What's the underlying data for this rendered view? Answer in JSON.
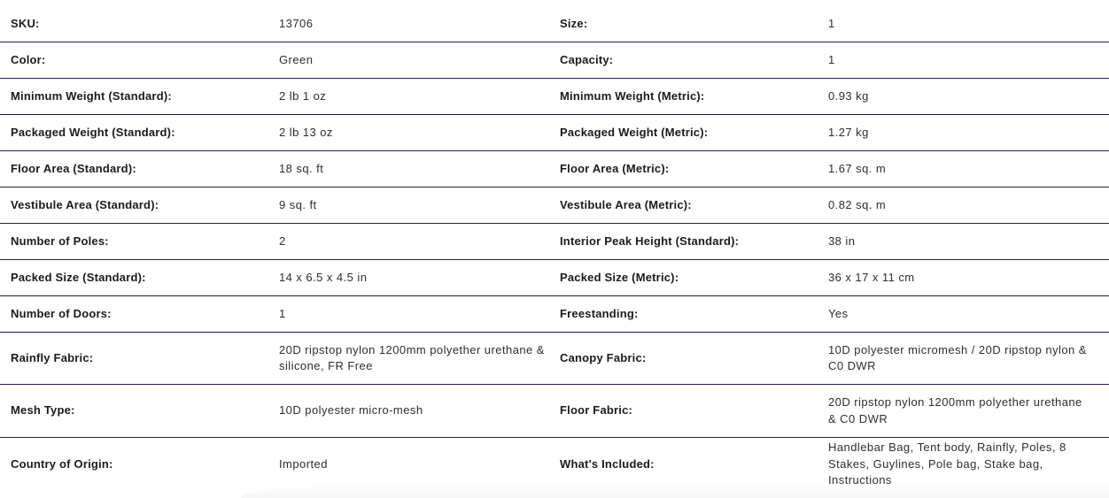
{
  "colors": {
    "background": "#ffffff",
    "divider": "#261d4f",
    "label_text": "#1b1b1b",
    "value_text": "#2e2e2e",
    "bottom_card": "#f6f6f7"
  },
  "spec_table": {
    "rows": [
      {
        "left": {
          "label": "SKU:",
          "value": "13706"
        },
        "right": {
          "label": "Size:",
          "value": "1"
        }
      },
      {
        "left": {
          "label": "Color:",
          "value": "Green"
        },
        "right": {
          "label": "Capacity:",
          "value": "1"
        }
      },
      {
        "left": {
          "label": "Minimum Weight (Standard):",
          "value": "2 lb 1 oz"
        },
        "right": {
          "label": "Minimum Weight (Metric):",
          "value": "0.93 kg"
        }
      },
      {
        "left": {
          "label": "Packaged Weight (Standard):",
          "value": "2 lb 13 oz"
        },
        "right": {
          "label": "Packaged Weight (Metric):",
          "value": "1.27 kg"
        }
      },
      {
        "left": {
          "label": "Floor Area (Standard):",
          "value": "18 sq. ft"
        },
        "right": {
          "label": "Floor Area (Metric):",
          "value": "1.67 sq. m"
        }
      },
      {
        "left": {
          "label": "Vestibule Area (Standard):",
          "value": "9 sq. ft"
        },
        "right": {
          "label": "Vestibule Area (Metric):",
          "value": "0.82 sq. m"
        }
      },
      {
        "left": {
          "label": "Number of Poles:",
          "value": "2"
        },
        "right": {
          "label": "Interior Peak Height (Standard):",
          "value": "38 in"
        }
      },
      {
        "left": {
          "label": "Packed Size (Standard):",
          "value": "14 x 6.5 x 4.5 in"
        },
        "right": {
          "label": "Packed Size (Metric):",
          "value": "36 x 17 x 11 cm"
        }
      },
      {
        "left": {
          "label": "Number of Doors:",
          "value": "1"
        },
        "right": {
          "label": "Freestanding:",
          "value": "Yes"
        }
      },
      {
        "left": {
          "label": "Rainfly Fabric:",
          "value": "20D ripstop nylon 1200mm polyether urethane & silicone, FR Free"
        },
        "right": {
          "label": "Canopy Fabric:",
          "value": "10D polyester micromesh / 20D ripstop nylon & C0 DWR"
        }
      },
      {
        "left": {
          "label": "Mesh Type:",
          "value": "10D polyester micro-mesh"
        },
        "right": {
          "label": "Floor Fabric:",
          "value": "20D ripstop nylon 1200mm polyether urethane & C0 DWR"
        }
      },
      {
        "left": {
          "label": "Country of Origin:",
          "value": "Imported"
        },
        "right": {
          "label": "What's Included:",
          "value": "Handlebar Bag, Tent body, Rainfly, Poles, 8 Stakes, Guylines, Pole bag, Stake bag, Instructions"
        }
      }
    ]
  }
}
